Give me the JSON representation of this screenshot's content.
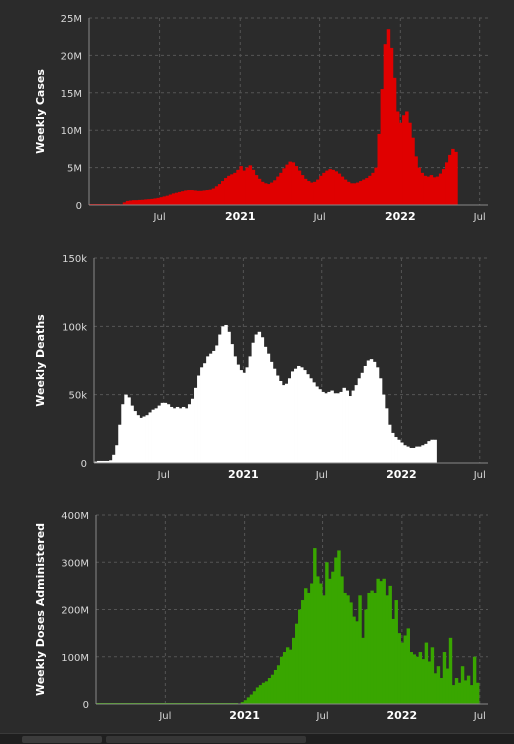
{
  "colors": {
    "cases": "#e00000",
    "deaths": "#ffffff",
    "vaccines": "#39a600",
    "background": "#2b2b2b",
    "grid": "#555555"
  },
  "x_ticks": [
    {
      "label": "Jul",
      "date": "2020-07-01",
      "bold": false
    },
    {
      "label": "2021",
      "date": "2021-01-01",
      "bold": true
    },
    {
      "label": "Jul",
      "date": "2021-07-01",
      "bold": false
    },
    {
      "label": "2022",
      "date": "2022-01-01",
      "bold": true
    },
    {
      "label": "Jul",
      "date": "2022-07-01",
      "bold": false
    }
  ],
  "chart_data": [
    {
      "type": "bar",
      "ylabel": "Weekly Cases",
      "x_start": "2020-01-22",
      "x_interval": "weekly",
      "xlim": [
        "2020-01-22",
        "2022-07-20"
      ],
      "ylim": [
        0,
        25000000
      ],
      "yticks": [
        {
          "value": 0,
          "label": "0"
        },
        {
          "value": 5000000,
          "label": "5M"
        },
        {
          "value": 10000000,
          "label": "10M"
        },
        {
          "value": 15000000,
          "label": "15M"
        },
        {
          "value": 20000000,
          "label": "20M"
        },
        {
          "value": 25000000,
          "label": "25M"
        }
      ],
      "grid": true,
      "values": [
        0,
        0,
        0,
        0,
        0,
        0,
        0,
        0,
        0,
        0,
        100000,
        350000,
        550000,
        600000,
        650000,
        650000,
        680000,
        700000,
        750000,
        780000,
        820000,
        880000,
        950000,
        1050000,
        1150000,
        1250000,
        1400000,
        1550000,
        1650000,
        1750000,
        1850000,
        1950000,
        2000000,
        2000000,
        1950000,
        1900000,
        1900000,
        1950000,
        2000000,
        2050000,
        2200000,
        2500000,
        2800000,
        3200000,
        3600000,
        3900000,
        4100000,
        4300000,
        4700000,
        5200000,
        4600000,
        5000000,
        5300000,
        4700000,
        4000000,
        3500000,
        3100000,
        2900000,
        2800000,
        3000000,
        3300000,
        3800000,
        4300000,
        4900000,
        5400000,
        5800000,
        5700000,
        5200000,
        4600000,
        4000000,
        3500000,
        3200000,
        3000000,
        3100000,
        3400000,
        3900000,
        4300000,
        4600000,
        4800000,
        4700000,
        4500000,
        4200000,
        3800000,
        3400000,
        3100000,
        2900000,
        2900000,
        3000000,
        3200000,
        3400000,
        3600000,
        3900000,
        4300000,
        5000000,
        9500000,
        15500000,
        21500000,
        23500000,
        21000000,
        17000000,
        12500000,
        11000000,
        12000000,
        12500000,
        11000000,
        9000000,
        6500000,
        5000000,
        4300000,
        3900000,
        3800000,
        4000000,
        3700000,
        3800000,
        4200000,
        4800000,
        5700000,
        6700000,
        7500000,
        7100000
      ]
    },
    {
      "type": "bar",
      "ylabel": "Weekly Deaths",
      "x_start": "2020-01-22",
      "x_interval": "weekly",
      "xlim": [
        "2020-01-22",
        "2022-07-20"
      ],
      "ylim": [
        0,
        150000
      ],
      "yticks": [
        {
          "value": 0,
          "label": "0"
        },
        {
          "value": 50000,
          "label": "50k"
        },
        {
          "value": 100000,
          "label": "100k"
        },
        {
          "value": 150000,
          "label": "150k"
        }
      ],
      "grid": true,
      "values": [
        1000,
        1500,
        1500,
        1500,
        1500,
        2000,
        6000,
        13000,
        28000,
        43000,
        50000,
        48000,
        42000,
        38000,
        35000,
        33000,
        34000,
        35000,
        37000,
        39000,
        40000,
        42000,
        44000,
        44000,
        43000,
        41000,
        40000,
        41000,
        40000,
        41000,
        40000,
        43000,
        47000,
        55000,
        64000,
        70000,
        73000,
        78000,
        80000,
        82000,
        86000,
        94000,
        100000,
        101000,
        96000,
        87000,
        78000,
        72000,
        68000,
        66000,
        70000,
        78000,
        88000,
        94000,
        96000,
        92000,
        85000,
        80000,
        74000,
        69000,
        64000,
        60000,
        57000,
        58000,
        62000,
        67000,
        69000,
        71000,
        70000,
        68000,
        65000,
        62000,
        59000,
        56000,
        54000,
        52000,
        51000,
        52000,
        53000,
        51000,
        51000,
        52000,
        55000,
        53000,
        49000,
        53000,
        57000,
        62000,
        66000,
        71000,
        75000,
        76000,
        74000,
        70000,
        62000,
        50000,
        40000,
        28000,
        22000,
        19000,
        17000,
        15000,
        13000,
        12000,
        11000,
        11000,
        12000,
        12000,
        13000,
        14000,
        16000,
        17000,
        17000
      ]
    },
    {
      "type": "bar",
      "ylabel": "Weekly Doses Administered",
      "x_start": "2020-01-22",
      "x_interval": "weekly",
      "xlim": [
        "2020-01-22",
        "2022-07-20"
      ],
      "ylim": [
        0,
        400000000
      ],
      "yticks": [
        {
          "value": 0,
          "label": "0"
        },
        {
          "value": 100000000,
          "label": "100M"
        },
        {
          "value": 200000000,
          "label": "200M"
        },
        {
          "value": 300000000,
          "label": "300M"
        },
        {
          "value": 400000000,
          "label": "400M"
        }
      ],
      "grid": true,
      "values": [
        0,
        0,
        0,
        0,
        0,
        0,
        0,
        0,
        0,
        0,
        0,
        0,
        0,
        0,
        0,
        0,
        0,
        0,
        0,
        0,
        0,
        0,
        0,
        0,
        0,
        0,
        0,
        0,
        0,
        0,
        0,
        0,
        0,
        0,
        0,
        0,
        0,
        0,
        0,
        0,
        0,
        0,
        0,
        0,
        0,
        0,
        0,
        1000000,
        4000000,
        8000000,
        14000000,
        20000000,
        27000000,
        35000000,
        40000000,
        45000000,
        48000000,
        55000000,
        62000000,
        72000000,
        82000000,
        100000000,
        110000000,
        120000000,
        115000000,
        140000000,
        170000000,
        200000000,
        220000000,
        245000000,
        235000000,
        255000000,
        330000000,
        270000000,
        255000000,
        230000000,
        300000000,
        265000000,
        280000000,
        310000000,
        325000000,
        270000000,
        235000000,
        230000000,
        215000000,
        185000000,
        175000000,
        230000000,
        140000000,
        200000000,
        235000000,
        240000000,
        235000000,
        265000000,
        260000000,
        265000000,
        230000000,
        250000000,
        180000000,
        220000000,
        150000000,
        130000000,
        145000000,
        160000000,
        110000000,
        105000000,
        100000000,
        110000000,
        95000000,
        130000000,
        90000000,
        120000000,
        65000000,
        80000000,
        55000000,
        110000000,
        75000000,
        140000000,
        40000000,
        55000000,
        45000000,
        80000000,
        50000000,
        60000000,
        40000000,
        100000000,
        45000000
      ]
    }
  ]
}
